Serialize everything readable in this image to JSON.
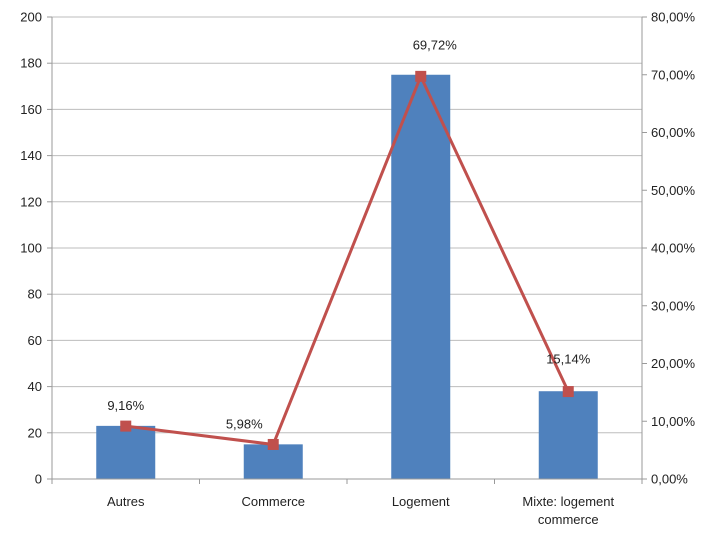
{
  "chart_data": {
    "type": "bar",
    "categories": [
      [
        "Autres"
      ],
      [
        "Commerce"
      ],
      [
        "Logement"
      ],
      [
        "Mixte: logement",
        "commerce"
      ]
    ],
    "series": [
      {
        "values": [
          23,
          15,
          175,
          38
        ],
        "axis": "left",
        "kind": "bar",
        "color": "#4f81bd"
      },
      {
        "values": [
          9.16,
          5.98,
          69.72,
          15.14
        ],
        "axis": "right",
        "kind": "line",
        "color": "#c0504d",
        "labels": [
          "9,16%",
          "5,98%",
          "69,72%",
          "15,14%"
        ]
      }
    ],
    "y_left": {
      "ylim": [
        0,
        200
      ],
      "ticks": [
        "0",
        "20",
        "40",
        "60",
        "80",
        "100",
        "120",
        "140",
        "160",
        "180",
        "200"
      ]
    },
    "y_right": {
      "ylim": [
        0,
        80
      ],
      "ticks": [
        "0,00%",
        "10,00%",
        "20,00%",
        "30,00%",
        "40,00%",
        "50,00%",
        "60,00%",
        "70,00%",
        "80,00%"
      ]
    },
    "grid": true,
    "legend": "none"
  }
}
